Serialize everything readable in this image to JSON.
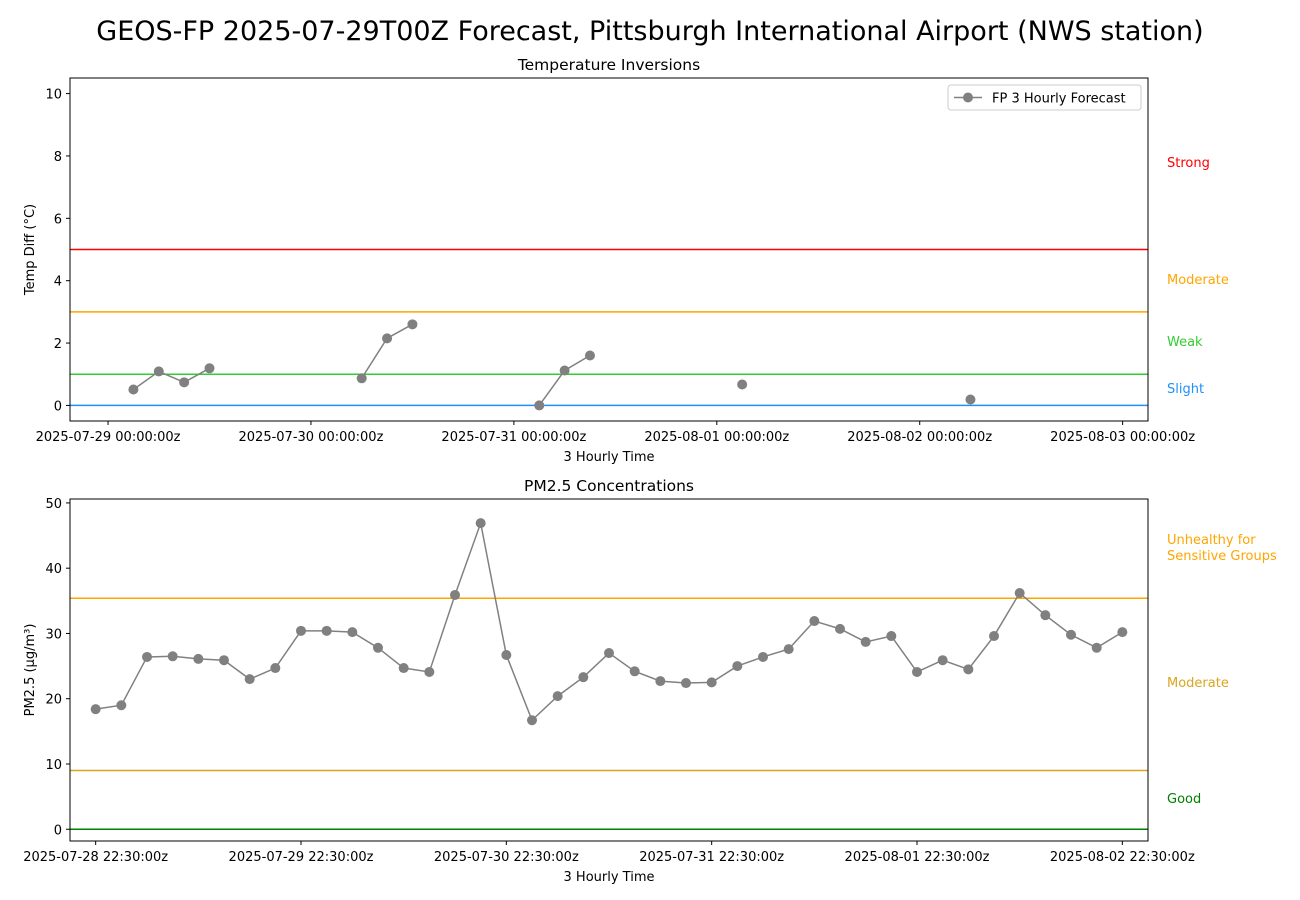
{
  "title": "GEOS-FP 2025-07-29T00Z Forecast, Pittsburgh International Airport (NWS station)",
  "chart_data": [
    {
      "type": "line",
      "title": "Temperature Inversions",
      "xlabel": "3 Hourly Time",
      "ylabel": "Temp Diff (°C)",
      "xlim": [
        "2025-07-28 19:30:00",
        "2025-08-03 03:00:00"
      ],
      "xticks": [
        {
          "value": "2025-07-29 00:00:00",
          "label": "2025-07-29 00:00:00z"
        },
        {
          "value": "2025-07-30 00:00:00",
          "label": "2025-07-30 00:00:00z"
        },
        {
          "value": "2025-07-31 00:00:00",
          "label": "2025-07-31 00:00:00z"
        },
        {
          "value": "2025-08-01 00:00:00",
          "label": "2025-08-01 00:00:00z"
        },
        {
          "value": "2025-08-02 00:00:00",
          "label": "2025-08-02 00:00:00z"
        },
        {
          "value": "2025-08-03 00:00:00",
          "label": "2025-08-03 00:00:00z"
        }
      ],
      "ylim": [
        -0.5,
        10.5
      ],
      "yticks": [
        0,
        2,
        4,
        6,
        8,
        10
      ],
      "legend": "upper right",
      "thresholds": [
        {
          "value": 0,
          "label": "Slight",
          "color": "#1e90ff"
        },
        {
          "value": 1,
          "label": "Weak",
          "color": "#32cd32"
        },
        {
          "value": 3,
          "label": "Moderate",
          "color": "#ffa500"
        },
        {
          "value": 5,
          "label": "Strong",
          "color": "#ff0000"
        }
      ],
      "series": [
        {
          "name": "FP 3 Hourly Forecast",
          "color": "#808080",
          "x": [
            "2025-07-29 03:00:00",
            "2025-07-29 06:00:00",
            "2025-07-29 09:00:00",
            "2025-07-29 12:00:00",
            "2025-07-29 15:00:00",
            "2025-07-29 18:00:00",
            "2025-07-29 21:00:00",
            "2025-07-30 00:00:00",
            "2025-07-30 03:00:00",
            "2025-07-30 06:00:00",
            "2025-07-30 09:00:00",
            "2025-07-30 12:00:00",
            "2025-07-30 15:00:00",
            "2025-07-30 18:00:00",
            "2025-07-30 21:00:00",
            "2025-07-31 00:00:00",
            "2025-07-31 03:00:00",
            "2025-07-31 06:00:00",
            "2025-07-31 09:00:00",
            "2025-07-31 12:00:00",
            "2025-07-31 15:00:00",
            "2025-07-31 18:00:00",
            "2025-07-31 21:00:00",
            "2025-08-01 00:00:00",
            "2025-08-01 03:00:00",
            "2025-08-01 06:00:00",
            "2025-08-01 09:00:00",
            "2025-08-01 12:00:00",
            "2025-08-01 15:00:00",
            "2025-08-01 18:00:00",
            "2025-08-01 21:00:00",
            "2025-08-02 00:00:00",
            "2025-08-02 03:00:00",
            "2025-08-02 06:00:00"
          ],
          "values": [
            0.51,
            1.09,
            0.74,
            1.19,
            null,
            null,
            null,
            null,
            null,
            0.87,
            2.15,
            2.6,
            null,
            null,
            null,
            null,
            0.0,
            1.12,
            1.6,
            null,
            null,
            null,
            null,
            null,
            0.67,
            null,
            null,
            null,
            null,
            null,
            null,
            null,
            null,
            0.19
          ]
        }
      ]
    },
    {
      "type": "line",
      "title": "PM2.5 Concentrations",
      "xlabel": "3 Hourly Time",
      "ylabel": "PM2.5 (µg/m³)",
      "xlim": [
        "2025-07-28 19:30:00",
        "2025-08-03 01:30:00"
      ],
      "xticks": [
        {
          "value": "2025-07-28 22:30:00",
          "label": "2025-07-28 22:30:00z"
        },
        {
          "value": "2025-07-29 22:30:00",
          "label": "2025-07-29 22:30:00z"
        },
        {
          "value": "2025-07-30 22:30:00",
          "label": "2025-07-30 22:30:00z"
        },
        {
          "value": "2025-07-31 22:30:00",
          "label": "2025-07-31 22:30:00z"
        },
        {
          "value": "2025-08-01 22:30:00",
          "label": "2025-08-01 22:30:00z"
        },
        {
          "value": "2025-08-02 22:30:00",
          "label": "2025-08-02 22:30:00z"
        }
      ],
      "ylim": [
        -1.8,
        50.6
      ],
      "yticks": [
        0,
        10,
        20,
        30,
        40,
        50
      ],
      "thresholds": [
        {
          "value": 0,
          "label": "Good",
          "color": "#008000"
        },
        {
          "value": 9,
          "label": "Moderate",
          "color": "#daa520"
        },
        {
          "value": 35.4,
          "label": "Unhealthy for\nSensitive Groups",
          "color": "#ffa500"
        }
      ],
      "series": [
        {
          "color": "#808080",
          "x": [
            "2025-07-28 22:30:00",
            "2025-07-29 01:30:00",
            "2025-07-29 04:30:00",
            "2025-07-29 07:30:00",
            "2025-07-29 10:30:00",
            "2025-07-29 13:30:00",
            "2025-07-29 16:30:00",
            "2025-07-29 19:30:00",
            "2025-07-29 22:30:00",
            "2025-07-30 01:30:00",
            "2025-07-30 04:30:00",
            "2025-07-30 07:30:00",
            "2025-07-30 10:30:00",
            "2025-07-30 13:30:00",
            "2025-07-30 16:30:00",
            "2025-07-30 19:30:00",
            "2025-07-30 22:30:00",
            "2025-07-31 01:30:00",
            "2025-07-31 04:30:00",
            "2025-07-31 07:30:00",
            "2025-07-31 10:30:00",
            "2025-07-31 13:30:00",
            "2025-07-31 16:30:00",
            "2025-07-31 19:30:00",
            "2025-07-31 22:30:00",
            "2025-08-01 01:30:00",
            "2025-08-01 04:30:00",
            "2025-08-01 07:30:00",
            "2025-08-01 10:30:00",
            "2025-08-01 13:30:00",
            "2025-08-01 16:30:00",
            "2025-08-01 19:30:00",
            "2025-08-01 22:30:00",
            "2025-08-02 01:30:00",
            "2025-08-02 04:30:00",
            "2025-08-02 07:30:00",
            "2025-08-02 10:30:00",
            "2025-08-02 13:30:00",
            "2025-08-02 16:30:00",
            "2025-08-02 19:30:00",
            "2025-08-02 22:30:00"
          ],
          "values": [
            18.4,
            19.0,
            26.4,
            26.5,
            26.1,
            25.9,
            23.0,
            24.7,
            30.4,
            30.4,
            30.2,
            27.8,
            24.7,
            24.1,
            35.9,
            46.9,
            26.7,
            16.7,
            20.4,
            23.3,
            27.0,
            24.2,
            22.7,
            22.4,
            22.5,
            25.0,
            26.4,
            27.6,
            31.9,
            30.7,
            28.7,
            29.6,
            24.1,
            25.9,
            24.5,
            29.6,
            36.2,
            32.8,
            29.8,
            27.8,
            30.2
          ]
        }
      ]
    }
  ]
}
